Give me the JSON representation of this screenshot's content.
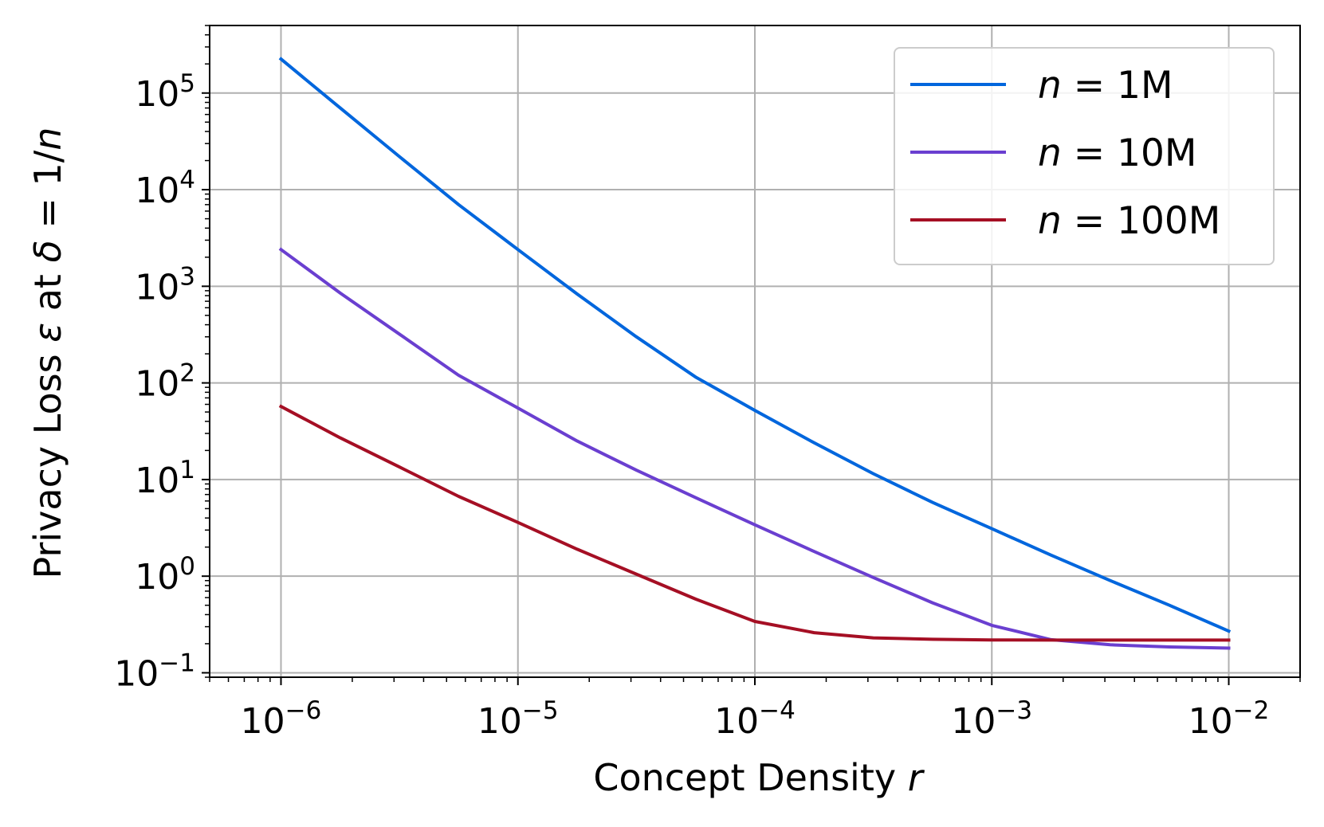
{
  "chart_data": {
    "type": "line",
    "xscale": "log",
    "yscale": "log",
    "xlim": [
      5e-07,
      0.02
    ],
    "ylim": [
      0.09,
      500000
    ],
    "grid": true,
    "legend_position": "top-right",
    "xlabel": {
      "text": "Concept Density ",
      "var": "r"
    },
    "ylabel": {
      "pre": "Privacy Loss ",
      "eps": "ε",
      "mid": " at ",
      "delta": "δ",
      "post": " = 1/",
      "n": "n"
    },
    "x_ticks": [
      {
        "base": "10",
        "exp": "−6",
        "value": 1e-06
      },
      {
        "base": "10",
        "exp": "−5",
        "value": 1e-05
      },
      {
        "base": "10",
        "exp": "−4",
        "value": 0.0001
      },
      {
        "base": "10",
        "exp": "−3",
        "value": 0.001
      },
      {
        "base": "10",
        "exp": "−2",
        "value": 0.01
      }
    ],
    "y_ticks": [
      {
        "base": "10",
        "exp": "−1",
        "value": 0.1
      },
      {
        "base": "10",
        "exp": "0",
        "value": 1
      },
      {
        "base": "10",
        "exp": "1",
        "value": 10
      },
      {
        "base": "10",
        "exp": "2",
        "value": 100
      },
      {
        "base": "10",
        "exp": "3",
        "value": 1000
      },
      {
        "base": "10",
        "exp": "4",
        "value": 10000
      },
      {
        "base": "10",
        "exp": "5",
        "value": 100000
      }
    ],
    "x": [
      1e-06,
      1.78e-06,
      3.16e-06,
      5.62e-06,
      1e-05,
      1.78e-05,
      3.16e-05,
      5.62e-05,
      0.0001,
      0.000178,
      0.000316,
      0.000562,
      0.001,
      0.00178,
      0.00316,
      0.00562,
      0.01
    ],
    "series": [
      {
        "name_var": "n",
        "name_eq": " = ",
        "name_val": "1M",
        "color": "#0066dd",
        "values": [
          225000,
          70000,
          22000,
          7000,
          2400,
          830,
          300,
          115,
          52,
          24,
          11.5,
          5.8,
          3.1,
          1.65,
          0.9,
          0.5,
          0.27
        ]
      },
      {
        "name_var": "n",
        "name_eq": " = ",
        "name_val": "10M",
        "color": "#6a3fd0",
        "values": [
          2400,
          850,
          320,
          120,
          55,
          25,
          12.5,
          6.5,
          3.4,
          1.8,
          0.97,
          0.53,
          0.31,
          0.22,
          0.195,
          0.185,
          0.18
        ]
      },
      {
        "name_var": "n",
        "name_eq": " = ",
        "name_val": "100M",
        "color": "#a50f24",
        "values": [
          57,
          27,
          13.5,
          6.7,
          3.6,
          1.9,
          1.05,
          0.58,
          0.34,
          0.26,
          0.23,
          0.222,
          0.219,
          0.218,
          0.218,
          0.218,
          0.218
        ]
      }
    ]
  }
}
